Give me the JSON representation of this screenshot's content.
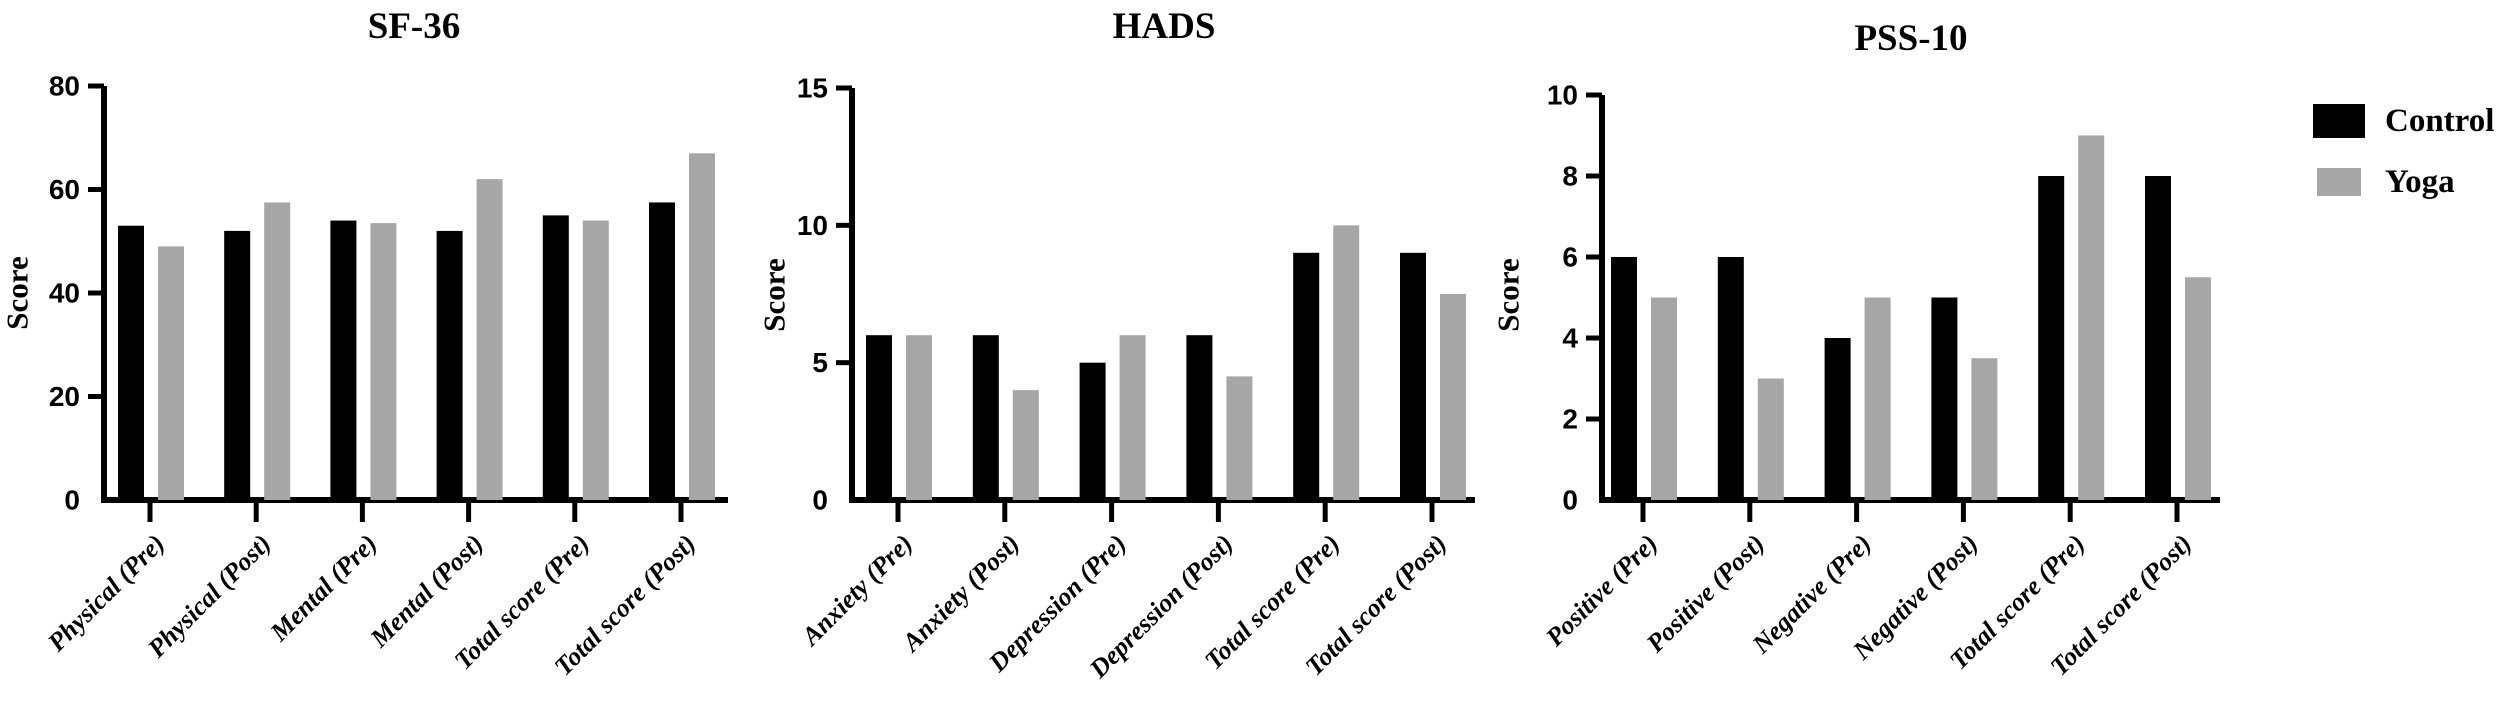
{
  "legend": {
    "position": "right",
    "items": [
      {
        "label": "Control",
        "color": "#000000"
      },
      {
        "label": "Yoga",
        "color": "#a6a6a6"
      }
    ]
  },
  "chart_data": [
    {
      "type": "bar",
      "title": "SF-36",
      "ylabel": "Score",
      "xlabel": "",
      "ylim": [
        0,
        80
      ],
      "yticks": [
        0,
        20,
        40,
        60,
        80
      ],
      "grid": false,
      "categories": [
        "Physical (Pre)",
        "Physical (Post)",
        "Mental (Pre)",
        "Mental (Post)",
        "Total score (Pre)",
        "Total score (Post)"
      ],
      "series": [
        {
          "name": "Control",
          "color": "#000000",
          "values": [
            53,
            52,
            54,
            52,
            55,
            57.5
          ]
        },
        {
          "name": "Yoga",
          "color": "#a6a6a6",
          "values": [
            49,
            57.5,
            53.5,
            62,
            54,
            67
          ]
        }
      ]
    },
    {
      "type": "bar",
      "title": "HADS",
      "ylabel": "Score",
      "xlabel": "",
      "ylim": [
        0,
        15
      ],
      "yticks": [
        0,
        5,
        10,
        15
      ],
      "grid": false,
      "categories": [
        "Anxiety (Pre)",
        "Anxiety (Post)",
        "Depression (Pre)",
        "Depression (Post)",
        "Total score (Pre)",
        "Total score (Post)"
      ],
      "series": [
        {
          "name": "Control",
          "color": "#000000",
          "values": [
            6,
            6,
            5,
            6,
            9,
            9
          ]
        },
        {
          "name": "Yoga",
          "color": "#a6a6a6",
          "values": [
            6,
            4,
            6,
            4.5,
            10,
            7.5
          ]
        }
      ]
    },
    {
      "type": "bar",
      "title": "PSS-10",
      "ylabel": "Score",
      "xlabel": "",
      "ylim": [
        0,
        10
      ],
      "yticks": [
        0,
        2,
        4,
        6,
        8,
        10
      ],
      "grid": false,
      "categories": [
        "Positive (Pre)",
        "Positive (Post)",
        "Negative (Pre)",
        "Negative (Post)",
        "Total score (Pre)",
        "Total score (Post)"
      ],
      "series": [
        {
          "name": "Control",
          "color": "#000000",
          "values": [
            6,
            6,
            4,
            5,
            8,
            8
          ]
        },
        {
          "name": "Yoga",
          "color": "#a6a6a6",
          "values": [
            5,
            3,
            5,
            3.5,
            9,
            5.5
          ]
        }
      ]
    }
  ]
}
